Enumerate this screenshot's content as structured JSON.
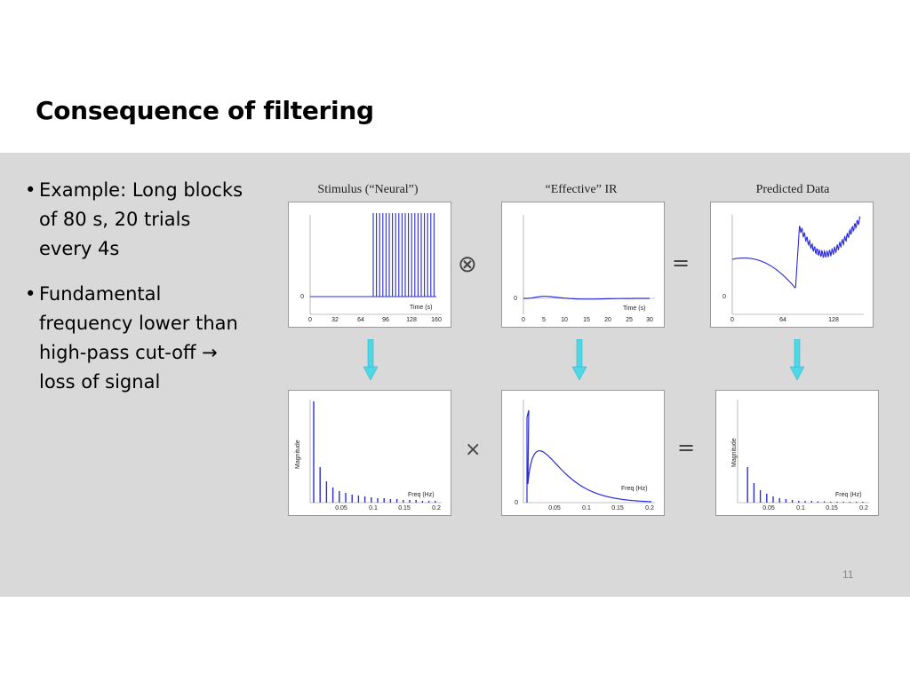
{
  "slide": {
    "title": "Consequence of filtering",
    "page_number": "11"
  },
  "bullets": [
    "Example: Long blocks of 80 s, 20 trials every 4s",
    "Fundamental frequency lower than high-pass cut-off → loss of signal"
  ],
  "figure": {
    "titles": [
      "Stimulus (“Neural”)",
      "“Effective” IR",
      "Predicted Data"
    ],
    "operators": {
      "convolve": "⊗",
      "equals_top": "=",
      "multiply": "×",
      "equals_bottom": "="
    },
    "colors": {
      "line": "#2b2bd9",
      "arrow": "#4dd8e8",
      "band": "#d9d9d9"
    },
    "panels": {
      "stimulus": {
        "xlabel": "Time (s)",
        "xticks": [
          "0",
          "32",
          "64",
          "96",
          "128",
          "160"
        ],
        "yticks": [
          "0"
        ]
      },
      "ir": {
        "xlabel": "Time (s)",
        "xticks": [
          "0",
          "5",
          "10",
          "15",
          "20",
          "25",
          "30"
        ],
        "yticks": [
          "0"
        ]
      },
      "predicted": {
        "xticks": [
          "0",
          "64",
          "128"
        ],
        "yticks": [
          "0"
        ]
      },
      "stim_spectrum": {
        "ylabel": "Magnitude",
        "xlabel": "Freq (Hz)",
        "xticks": [
          "0.05",
          "0.1",
          "0.15",
          "0.2"
        ]
      },
      "ir_spectrum": {
        "xlabel": "Freq (Hz)",
        "xticks": [
          "0.05",
          "0.1",
          "0.15",
          "0.2"
        ],
        "yticks": [
          "0"
        ]
      },
      "pred_spectrum": {
        "ylabel": "Magnitude",
        "xlabel": "Freq (Hz)",
        "xticks": [
          "0.05",
          "0.1",
          "0.15",
          "0.2"
        ]
      }
    }
  }
}
